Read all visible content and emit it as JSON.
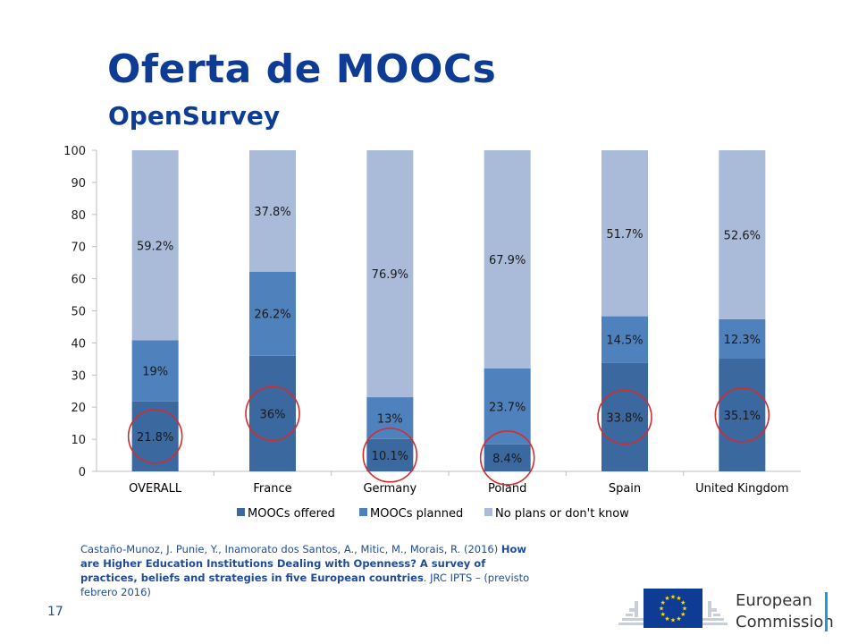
{
  "slide": {
    "title": "Oferta de MOOCs",
    "subtitle": "OpenSurvey",
    "page_number": "17",
    "citation": {
      "authors": "Castaño-Munoz, J. Punie, Y., Inamorato dos Santos, A., Mitic, M., Morais, R. (2016)",
      "work_title": "How are Higher Education Institutions Dealing with Openness? A survey of practices,  beliefs and strategies in five European countries",
      "suffix": ". JRC IPTS – (previsto febrero 2016)"
    },
    "logo": {
      "line1": "European",
      "line2": "Commission"
    }
  },
  "chart_data": {
    "type": "bar",
    "stacked": true,
    "categories": [
      "OVERALL",
      "France",
      "Germany",
      "Poland",
      "Spain",
      "United Kingdom"
    ],
    "series": [
      {
        "name": "MOOCs offered",
        "values": [
          21.8,
          36,
          10.1,
          8.4,
          33.8,
          35.1
        ],
        "labels": [
          "21.8%",
          "36%",
          "10.1%",
          "8.4%",
          "33.8%",
          "35.1%"
        ],
        "color": "#3c68a0"
      },
      {
        "name": "MOOCs planned",
        "values": [
          19,
          26.2,
          13,
          23.7,
          14.5,
          12.3
        ],
        "labels": [
          "19%",
          "26.2%",
          "13%",
          "23.7%",
          "14.5%",
          "12.3%"
        ],
        "color": "#4f81bd"
      },
      {
        "name": "No plans or don't know",
        "values": [
          59.2,
          37.8,
          76.9,
          67.9,
          51.7,
          52.6
        ],
        "labels": [
          "59.2%",
          "37.8%",
          "76.9%",
          "67.9%",
          "51.7%",
          "52.6%"
        ],
        "color": "#a9bbd9"
      }
    ],
    "ylim": [
      0,
      100
    ],
    "yticks": [
      0,
      10,
      20,
      30,
      40,
      50,
      60,
      70,
      80,
      90,
      100
    ],
    "grid": false,
    "legend": "bottom",
    "highlight_color": "#d42b2b",
    "highlighted_series": "MOOCs offered"
  }
}
